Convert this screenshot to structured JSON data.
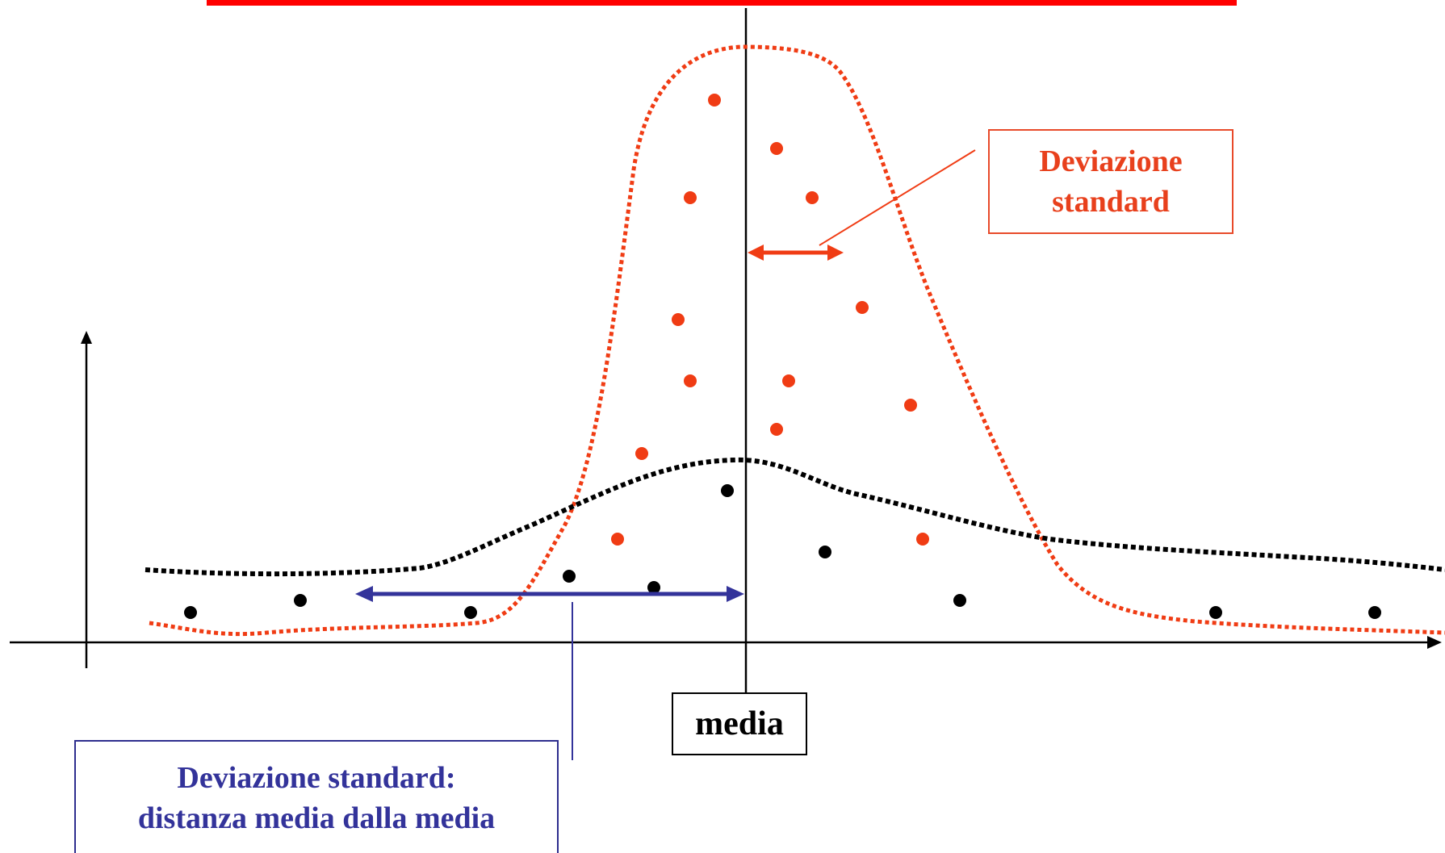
{
  "colors": {
    "title_bar": "#ff0000",
    "narrow_distribution": "#f03c14",
    "wide_distribution": "#000000",
    "std_arrow_narrow": "#f03c14",
    "std_arrow_wide": "#33339a",
    "axes": "#000000"
  },
  "labels": {
    "std_red_line1": "Deviazione",
    "std_red_line2": "standard",
    "mean": "media",
    "std_blue_line1": "Deviazione standard:",
    "std_blue_line2": "distanza media dalla media"
  },
  "icons": {
    "arrow_head": "triangle"
  }
}
